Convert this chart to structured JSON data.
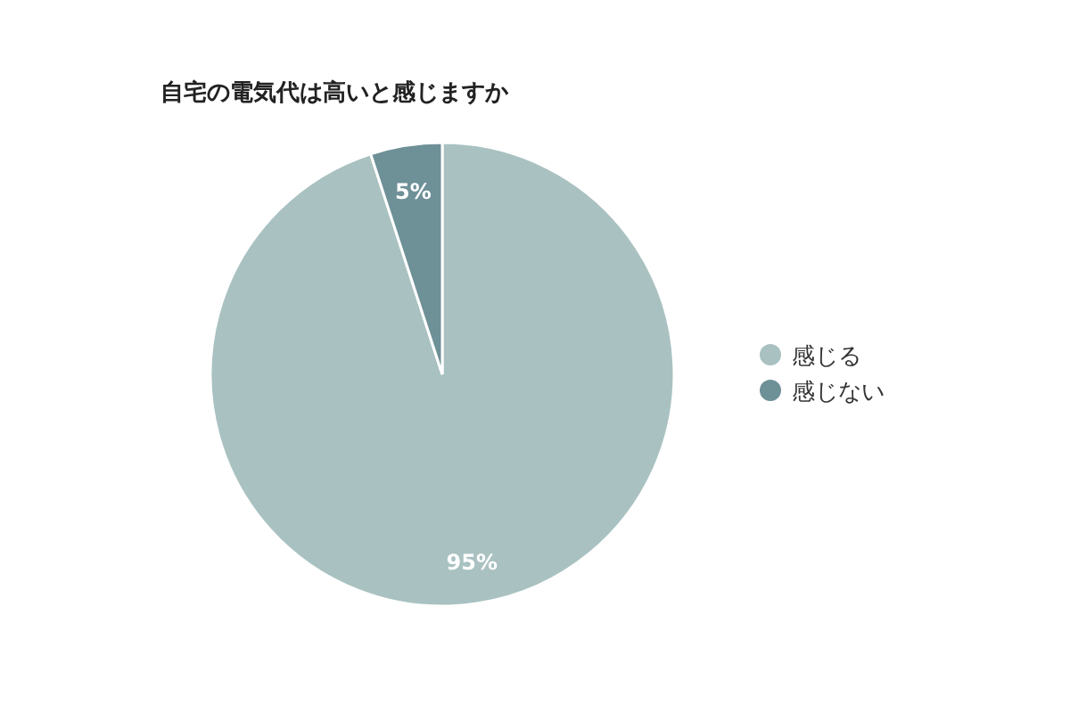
{
  "chart_data": {
    "type": "pie",
    "title": "自宅の電気代は高いと感じますか",
    "categories": [
      "感じる",
      "感じない"
    ],
    "values": [
      95,
      5
    ],
    "colors": [
      "#a9c1c1",
      "#6e9097"
    ],
    "value_labels": [
      "95%",
      "5%"
    ],
    "legend": "right"
  }
}
